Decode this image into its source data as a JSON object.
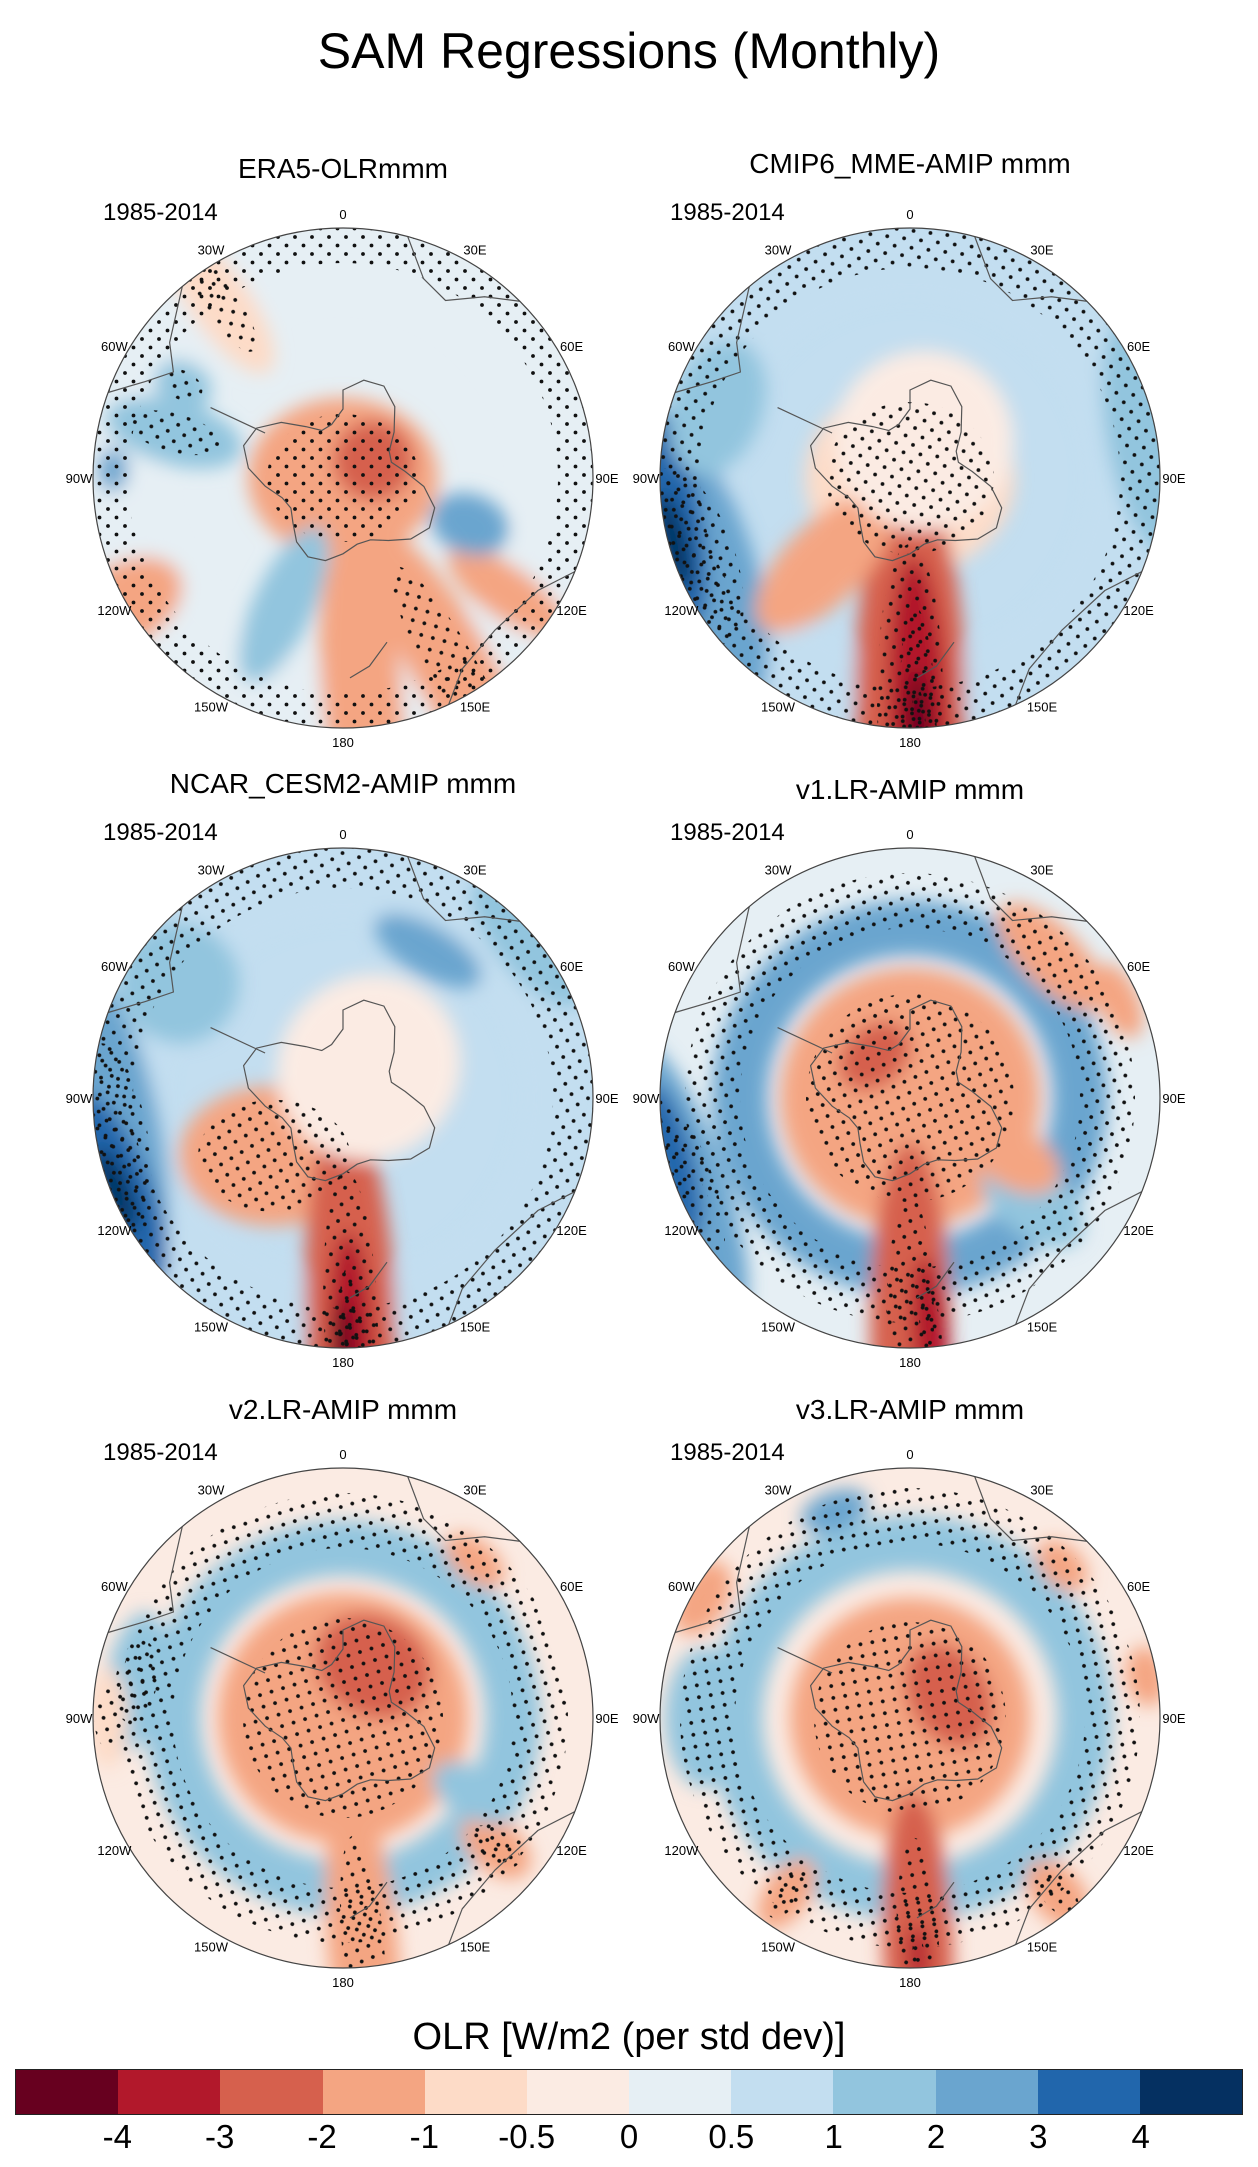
{
  "title": "SAM Regressions (Monthly)",
  "colorbar": {
    "title": "OLR [W/m2 (per std dev)]",
    "colors": [
      "#67001f",
      "#b2182b",
      "#d6604d",
      "#f4a582",
      "#fddbc7",
      "#fbebe3",
      "#e6eff4",
      "#c3def0",
      "#92c5de",
      "#6aa5cf",
      "#2166ac",
      "#053061"
    ],
    "tick_labels": [
      "-4",
      "-3",
      "-2",
      "-1",
      "-0.5",
      "0",
      "0.5",
      "1",
      "2",
      "3",
      "4"
    ]
  },
  "longitude_labels": [
    "0",
    "30E",
    "60E",
    "90E",
    "120E",
    "150E",
    "180",
    "150W",
    "120W",
    "90W",
    "60W",
    "30W"
  ],
  "panels": [
    {
      "title": "ERA5-OLRmmm",
      "period": "1985-2014"
    },
    {
      "title": "CMIP6_MME-AMIP  mmm",
      "period": "1985-2014"
    },
    {
      "title": "NCAR_CESM2-AMIP  mmm",
      "period": "1985-2014"
    },
    {
      "title": "v1.LR-AMIP  mmm",
      "period": "1985-2014"
    },
    {
      "title": "v2.LR-AMIP  mmm",
      "period": "1985-2014"
    },
    {
      "title": "v3.LR-AMIP  mmm",
      "period": "1985-2014"
    }
  ]
}
